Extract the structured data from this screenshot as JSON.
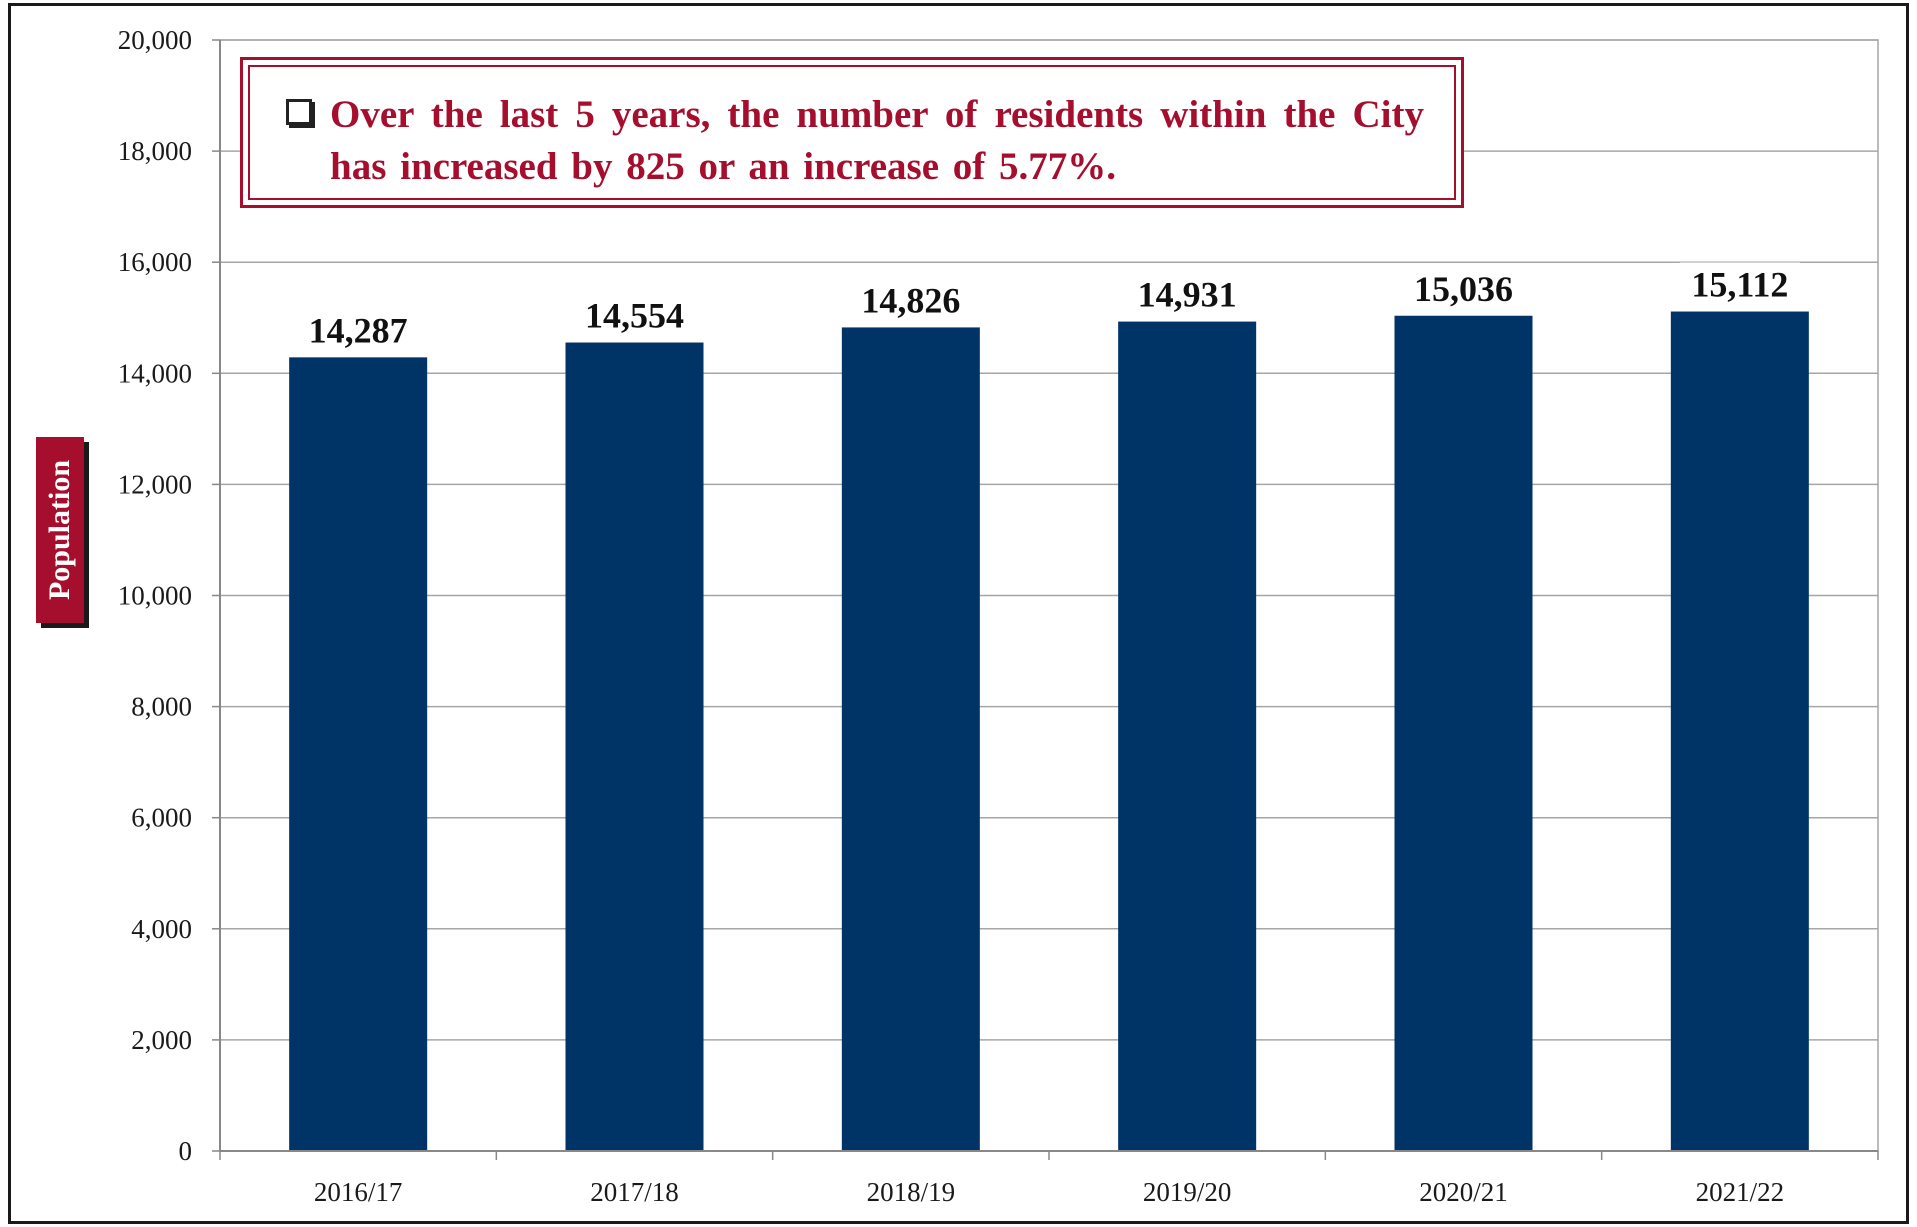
{
  "chart_data": {
    "type": "bar",
    "categories": [
      "2016/17",
      "2017/18",
      "2018/19",
      "2019/20",
      "2020/21",
      "2021/22"
    ],
    "values": [
      14287,
      14554,
      14826,
      14931,
      15036,
      15112
    ],
    "data_labels": [
      "14,287",
      "14,554",
      "14,826",
      "14,931",
      "15,036",
      "15,112"
    ],
    "title": "",
    "xlabel": "",
    "ylabel": "Population",
    "ylim": [
      0,
      20000
    ],
    "yticks": [
      0,
      2000,
      4000,
      6000,
      8000,
      10000,
      12000,
      14000,
      16000,
      18000,
      20000
    ],
    "ytick_labels": [
      "0",
      "2,000",
      "4,000",
      "6,000",
      "8,000",
      "10,000",
      "12,000",
      "14,000",
      "16,000",
      "18,000",
      "20,000"
    ],
    "grid": true,
    "legend": "none",
    "bar_color": "#003366",
    "annotation": "Over the last 5 years, the number of residents within the City has increased by 825 or an increase of 5.77%."
  },
  "colors": {
    "accent": "#a50e2d",
    "bar": "#003366",
    "grid": "#a6a6a6"
  },
  "icons": {
    "annotation_bullet": "checkbox-square-icon"
  }
}
